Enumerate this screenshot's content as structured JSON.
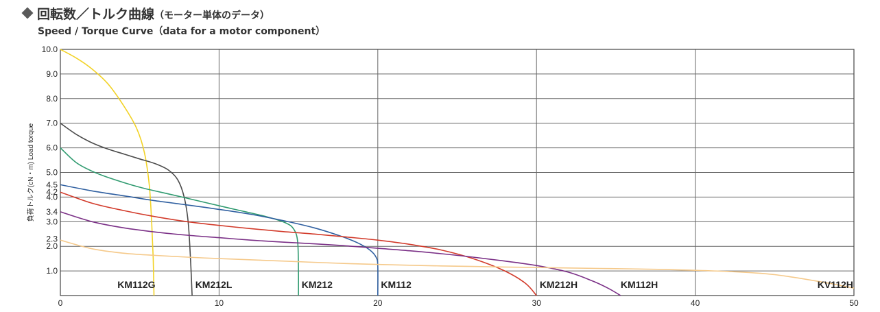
{
  "header": {
    "title": "回転数／トルク曲線",
    "title_note": "（モーター単体のデータ）",
    "subtitle": "Speed / Torque Curve（data for a motor component）"
  },
  "chart_data": {
    "type": "line",
    "xlabel": "",
    "ylabel": "負荷トルク(cN・m) Load torque",
    "xlim": [
      0,
      50
    ],
    "ylim": [
      0,
      10
    ],
    "x_ticks": [
      "0",
      "10",
      "20",
      "30",
      "40",
      "50"
    ],
    "y_ticks": [
      {
        "v": 1.0,
        "label": "1.0"
      },
      {
        "v": 2.0,
        "label": "2.0"
      },
      {
        "v": 2.3,
        "label": "2.3"
      },
      {
        "v": 3.0,
        "label": "3.0"
      },
      {
        "v": 3.4,
        "label": "3.4"
      },
      {
        "v": 4.0,
        "label": "4.0"
      },
      {
        "v": 4.2,
        "label": "4.2"
      },
      {
        "v": 4.5,
        "label": "4.5"
      },
      {
        "v": 5.0,
        "label": "5.0"
      },
      {
        "v": 6.0,
        "label": "6.0"
      },
      {
        "v": 7.0,
        "label": "7.0"
      },
      {
        "v": 8.0,
        "label": "8.0"
      },
      {
        "v": 9.0,
        "label": "9.0"
      },
      {
        "v": 10.0,
        "label": "10.0"
      }
    ],
    "grid": {
      "vertical": [
        10,
        20,
        30,
        40
      ],
      "horizontal": [
        1,
        2,
        3,
        4,
        5,
        6,
        7,
        8,
        9
      ]
    },
    "series": [
      {
        "name": "KM112G",
        "color": "#f2d226",
        "label_x": 3.6,
        "points": [
          [
            0,
            10
          ],
          [
            1,
            9.65
          ],
          [
            2,
            9.2
          ],
          [
            3,
            8.6
          ],
          [
            4,
            7.7
          ],
          [
            4.8,
            6.8
          ],
          [
            5.3,
            5.8
          ],
          [
            5.6,
            4.5
          ],
          [
            5.75,
            3.0
          ],
          [
            5.85,
            1.5
          ],
          [
            5.9,
            0
          ]
        ]
      },
      {
        "name": "KM212L",
        "color": "#4b4b4b",
        "label_x": 8.5,
        "points": [
          [
            0,
            7
          ],
          [
            1,
            6.55
          ],
          [
            2,
            6.2
          ],
          [
            3,
            5.95
          ],
          [
            4,
            5.75
          ],
          [
            5,
            5.55
          ],
          [
            6,
            5.35
          ],
          [
            6.8,
            5.1
          ],
          [
            7.4,
            4.7
          ],
          [
            7.8,
            4.0
          ],
          [
            8.05,
            3.0
          ],
          [
            8.2,
            1.5
          ],
          [
            8.3,
            0
          ]
        ]
      },
      {
        "name": "KM212",
        "color": "#2f9a6f",
        "label_x": 15.2,
        "points": [
          [
            0,
            6
          ],
          [
            1,
            5.4
          ],
          [
            2,
            5.05
          ],
          [
            3,
            4.8
          ],
          [
            5,
            4.4
          ],
          [
            7,
            4.1
          ],
          [
            9,
            3.8
          ],
          [
            11,
            3.5
          ],
          [
            13,
            3.2
          ],
          [
            14.2,
            2.95
          ],
          [
            14.7,
            2.7
          ],
          [
            14.95,
            2.2
          ],
          [
            15,
            1
          ],
          [
            15,
            0
          ]
        ]
      },
      {
        "name": "KM112",
        "color": "#2f5fa0",
        "label_x": 20.2,
        "points": [
          [
            0,
            4.5
          ],
          [
            2,
            4.25
          ],
          [
            4,
            4.05
          ],
          [
            6,
            3.85
          ],
          [
            8,
            3.68
          ],
          [
            10,
            3.5
          ],
          [
            12,
            3.3
          ],
          [
            14,
            3.05
          ],
          [
            16,
            2.75
          ],
          [
            17.5,
            2.45
          ],
          [
            18.7,
            2.15
          ],
          [
            19.5,
            1.85
          ],
          [
            19.9,
            1.55
          ],
          [
            20,
            1.2
          ],
          [
            20,
            0
          ]
        ]
      },
      {
        "name": "KM212H",
        "color": "#d23a2a",
        "label_x": 30.2,
        "points": [
          [
            0,
            4.2
          ],
          [
            2,
            3.75
          ],
          [
            4,
            3.45
          ],
          [
            6,
            3.2
          ],
          [
            8,
            3.0
          ],
          [
            10,
            2.85
          ],
          [
            12,
            2.72
          ],
          [
            14,
            2.6
          ],
          [
            16,
            2.5
          ],
          [
            18,
            2.38
          ],
          [
            20,
            2.25
          ],
          [
            22,
            2.08
          ],
          [
            24,
            1.85
          ],
          [
            26,
            1.5
          ],
          [
            28,
            1.0
          ],
          [
            29.3,
            0.5
          ],
          [
            30,
            0
          ]
        ]
      },
      {
        "name": "KM112H",
        "color": "#7a2f86",
        "label_x": 35.3,
        "points": [
          [
            0,
            3.4
          ],
          [
            2,
            3.0
          ],
          [
            4,
            2.75
          ],
          [
            6,
            2.58
          ],
          [
            8,
            2.45
          ],
          [
            10,
            2.35
          ],
          [
            12,
            2.25
          ],
          [
            14,
            2.17
          ],
          [
            16,
            2.1
          ],
          [
            18,
            2.02
          ],
          [
            20,
            1.92
          ],
          [
            22,
            1.82
          ],
          [
            24,
            1.7
          ],
          [
            26,
            1.56
          ],
          [
            28,
            1.4
          ],
          [
            30,
            1.22
          ],
          [
            32,
            0.95
          ],
          [
            33.5,
            0.6
          ],
          [
            34.5,
            0.3
          ],
          [
            35.3,
            0
          ]
        ]
      },
      {
        "name": "KV112H",
        "color": "#f5c98a",
        "label_x": 47.7,
        "points": [
          [
            0,
            2.25
          ],
          [
            2,
            1.9
          ],
          [
            4,
            1.72
          ],
          [
            6,
            1.63
          ],
          [
            8,
            1.56
          ],
          [
            10,
            1.5
          ],
          [
            14,
            1.4
          ],
          [
            18,
            1.3
          ],
          [
            22,
            1.23
          ],
          [
            26,
            1.18
          ],
          [
            30,
            1.14
          ],
          [
            34,
            1.1
          ],
          [
            38,
            1.06
          ],
          [
            42,
            0.98
          ],
          [
            45,
            0.85
          ],
          [
            48,
            0.55
          ],
          [
            50,
            0.3
          ]
        ]
      }
    ]
  }
}
